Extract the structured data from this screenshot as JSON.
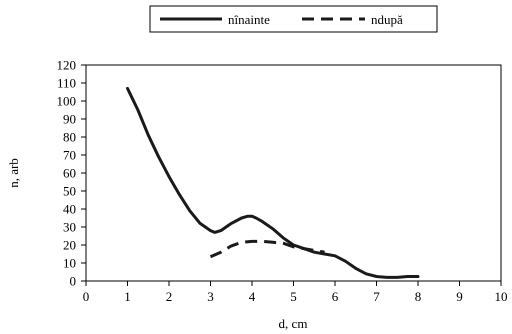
{
  "chart_data": {
    "type": "line",
    "xlabel": "d, cm",
    "ylabel": "n, arb",
    "xlim": [
      0,
      10
    ],
    "ylim": [
      0,
      120
    ],
    "x_ticks": [
      0,
      1,
      2,
      3,
      4,
      5,
      6,
      7,
      8,
      9,
      10
    ],
    "y_ticks": [
      0,
      10,
      20,
      30,
      40,
      50,
      60,
      70,
      80,
      90,
      100,
      110,
      120
    ],
    "grid": false,
    "legend_position": "top",
    "series": [
      {
        "name": "nînainte",
        "style": "solid",
        "color": "#1a1a1a",
        "x": [
          1.0,
          1.25,
          1.5,
          1.75,
          2.0,
          2.25,
          2.5,
          2.75,
          3.0,
          3.1,
          3.25,
          3.5,
          3.75,
          3.9,
          4.0,
          4.1,
          4.25,
          4.5,
          4.75,
          5.0,
          5.25,
          5.5,
          5.75,
          6.0,
          6.25,
          6.5,
          6.75,
          7.0,
          7.25,
          7.5,
          7.75,
          8.0
        ],
        "y": [
          107,
          95,
          81,
          69,
          58,
          48,
          39,
          32,
          28,
          27,
          28,
          32,
          35,
          36,
          36,
          35,
          33,
          29,
          24,
          20,
          18,
          16,
          15,
          14,
          11,
          7,
          4,
          2.5,
          2,
          2,
          2.5,
          2.5
        ]
      },
      {
        "name": "ndupă",
        "style": "dashed",
        "color": "#1a1a1a",
        "x": [
          3.0,
          3.25,
          3.5,
          3.75,
          4.0,
          4.25,
          4.5,
          4.75,
          5.0,
          5.25,
          5.5,
          5.75
        ],
        "y": [
          13.5,
          16,
          19.5,
          21.5,
          22,
          22,
          21.5,
          21,
          19,
          18,
          17,
          16
        ]
      }
    ]
  }
}
